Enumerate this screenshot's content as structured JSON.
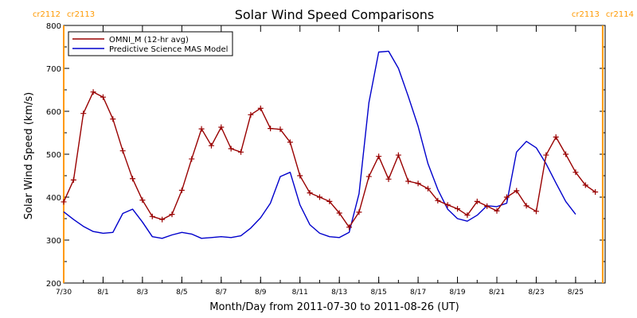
{
  "chart_data": {
    "type": "line",
    "title": "Solar Wind Speed Comparisons",
    "xlabel": "Month/Day from 2011-07-30 to 2011-08-26 (UT)",
    "ylabel": "Solar Wind Speed (km/s)",
    "xlim": [
      "2011-07-30",
      "2011-08-26 12:00"
    ],
    "ylim": [
      200,
      800
    ],
    "y_ticks": [
      200,
      300,
      400,
      500,
      600,
      700,
      800
    ],
    "x_ticks": [
      {
        "date": "2011-07-30",
        "label": "7/30"
      },
      {
        "date": "2011-08-01",
        "label": "8/1"
      },
      {
        "date": "2011-08-03",
        "label": "8/3"
      },
      {
        "date": "2011-08-05",
        "label": "8/5"
      },
      {
        "date": "2011-08-07",
        "label": "8/7"
      },
      {
        "date": "2011-08-09",
        "label": "8/9"
      },
      {
        "date": "2011-08-11",
        "label": "8/11"
      },
      {
        "date": "2011-08-13",
        "label": "8/13"
      },
      {
        "date": "2011-08-15",
        "label": "8/15"
      },
      {
        "date": "2011-08-17",
        "label": "8/17"
      },
      {
        "date": "2011-08-19",
        "label": "8/19"
      },
      {
        "date": "2011-08-21",
        "label": "8/21"
      },
      {
        "date": "2011-08-23",
        "label": "8/23"
      },
      {
        "date": "2011-08-25",
        "label": "8/25"
      }
    ],
    "carrington_markers": [
      {
        "date": "2011-07-30",
        "left_label": "cr2112",
        "right_label": "cr2113"
      },
      {
        "date": "2011-08-26 09:00",
        "left_label": "cr2113",
        "right_label": "cr2114"
      }
    ],
    "legend_position": "top-left",
    "series": [
      {
        "name": "OMNI_M (12-hr avg)",
        "color": "#990000",
        "marker": "plus",
        "points": [
          [
            "2011-07-30 00:00",
            389
          ],
          [
            "2011-07-30 12:00",
            440
          ],
          [
            "2011-07-31 00:00",
            595
          ],
          [
            "2011-07-31 12:00",
            645
          ],
          [
            "2011-08-01 00:00",
            633
          ],
          [
            "2011-08-01 12:00",
            582
          ],
          [
            "2011-08-02 00:00",
            508
          ],
          [
            "2011-08-02 12:00",
            443
          ],
          [
            "2011-08-03 00:00",
            393
          ],
          [
            "2011-08-03 12:00",
            355
          ],
          [
            "2011-08-04 00:00",
            348
          ],
          [
            "2011-08-04 12:00",
            360
          ],
          [
            "2011-08-05 00:00",
            416
          ],
          [
            "2011-08-05 12:00",
            489
          ],
          [
            "2011-08-06 00:00",
            559
          ],
          [
            "2011-08-06 12:00",
            520
          ],
          [
            "2011-08-07 00:00",
            563
          ],
          [
            "2011-08-07 12:00",
            513
          ],
          [
            "2011-08-08 00:00",
            505
          ],
          [
            "2011-08-08 12:00",
            592
          ],
          [
            "2011-08-09 00:00",
            607
          ],
          [
            "2011-08-09 12:00",
            560
          ],
          [
            "2011-08-10 00:00",
            558
          ],
          [
            "2011-08-10 12:00",
            528
          ],
          [
            "2011-08-11 00:00",
            450
          ],
          [
            "2011-08-11 12:00",
            410
          ],
          [
            "2011-08-12 00:00",
            400
          ],
          [
            "2011-08-12 12:00",
            390
          ],
          [
            "2011-08-13 00:00",
            363
          ],
          [
            "2011-08-13 12:00",
            330
          ],
          [
            "2011-08-14 00:00",
            365
          ],
          [
            "2011-08-14 12:00",
            448
          ],
          [
            "2011-08-15 00:00",
            495
          ],
          [
            "2011-08-15 12:00",
            442
          ],
          [
            "2011-08-16 00:00",
            498
          ],
          [
            "2011-08-16 12:00",
            437
          ],
          [
            "2011-08-17 00:00",
            432
          ],
          [
            "2011-08-17 12:00",
            420
          ],
          [
            "2011-08-18 00:00",
            392
          ],
          [
            "2011-08-18 12:00",
            382
          ],
          [
            "2011-08-19 00:00",
            373
          ],
          [
            "2011-08-19 12:00",
            358
          ],
          [
            "2011-08-20 00:00",
            390
          ],
          [
            "2011-08-20 12:00",
            379
          ],
          [
            "2011-08-21 00:00",
            368
          ],
          [
            "2011-08-21 12:00",
            400
          ],
          [
            "2011-08-22 00:00",
            415
          ],
          [
            "2011-08-22 12:00",
            380
          ],
          [
            "2011-08-23 00:00",
            367
          ],
          [
            "2011-08-23 12:00",
            498
          ],
          [
            "2011-08-24 00:00",
            540
          ],
          [
            "2011-08-24 12:00",
            500
          ],
          [
            "2011-08-25 00:00",
            458
          ],
          [
            "2011-08-25 12:00",
            428
          ],
          [
            "2011-08-26 00:00",
            412
          ]
        ]
      },
      {
        "name": "Predictive Science MAS Model",
        "color": "#0000cc",
        "marker": "none",
        "points": [
          [
            "2011-07-30 00:00",
            366
          ],
          [
            "2011-07-30 12:00",
            348
          ],
          [
            "2011-07-31 00:00",
            332
          ],
          [
            "2011-07-31 12:00",
            320
          ],
          [
            "2011-08-01 00:00",
            316
          ],
          [
            "2011-08-01 12:00",
            318
          ],
          [
            "2011-08-02 00:00",
            362
          ],
          [
            "2011-08-02 12:00",
            372
          ],
          [
            "2011-08-03 00:00",
            342
          ],
          [
            "2011-08-03 12:00",
            308
          ],
          [
            "2011-08-04 00:00",
            304
          ],
          [
            "2011-08-04 12:00",
            312
          ],
          [
            "2011-08-05 00:00",
            318
          ],
          [
            "2011-08-05 12:00",
            314
          ],
          [
            "2011-08-06 00:00",
            304
          ],
          [
            "2011-08-06 12:00",
            306
          ],
          [
            "2011-08-07 00:00",
            308
          ],
          [
            "2011-08-07 12:00",
            306
          ],
          [
            "2011-08-08 00:00",
            310
          ],
          [
            "2011-08-08 12:00",
            328
          ],
          [
            "2011-08-09 00:00",
            352
          ],
          [
            "2011-08-09 12:00",
            386
          ],
          [
            "2011-08-10 00:00",
            448
          ],
          [
            "2011-08-10 12:00",
            458
          ],
          [
            "2011-08-11 00:00",
            382
          ],
          [
            "2011-08-11 12:00",
            336
          ],
          [
            "2011-08-12 00:00",
            316
          ],
          [
            "2011-08-12 12:00",
            308
          ],
          [
            "2011-08-13 00:00",
            306
          ],
          [
            "2011-08-13 12:00",
            318
          ],
          [
            "2011-08-14 00:00",
            408
          ],
          [
            "2011-08-14 12:00",
            620
          ],
          [
            "2011-08-15 00:00",
            738
          ],
          [
            "2011-08-15 12:00",
            740
          ],
          [
            "2011-08-16 00:00",
            700
          ],
          [
            "2011-08-16 12:00",
            635
          ],
          [
            "2011-08-17 00:00",
            565
          ],
          [
            "2011-08-17 12:00",
            478
          ],
          [
            "2011-08-18 00:00",
            418
          ],
          [
            "2011-08-18 12:00",
            372
          ],
          [
            "2011-08-19 00:00",
            350
          ],
          [
            "2011-08-19 12:00",
            344
          ],
          [
            "2011-08-20 00:00",
            358
          ],
          [
            "2011-08-20 12:00",
            380
          ],
          [
            "2011-08-21 00:00",
            378
          ],
          [
            "2011-08-21 12:00",
            386
          ],
          [
            "2011-08-22 00:00",
            505
          ],
          [
            "2011-08-22 12:00",
            530
          ],
          [
            "2011-08-23 00:00",
            515
          ],
          [
            "2011-08-23 12:00",
            478
          ],
          [
            "2011-08-24 00:00",
            433
          ],
          [
            "2011-08-24 12:00",
            390
          ],
          [
            "2011-08-25 00:00",
            360
          ]
        ]
      }
    ]
  },
  "colors": {
    "omni": "#990000",
    "model": "#0000cc",
    "carrington": "#ff9900",
    "axes": "#000000"
  }
}
